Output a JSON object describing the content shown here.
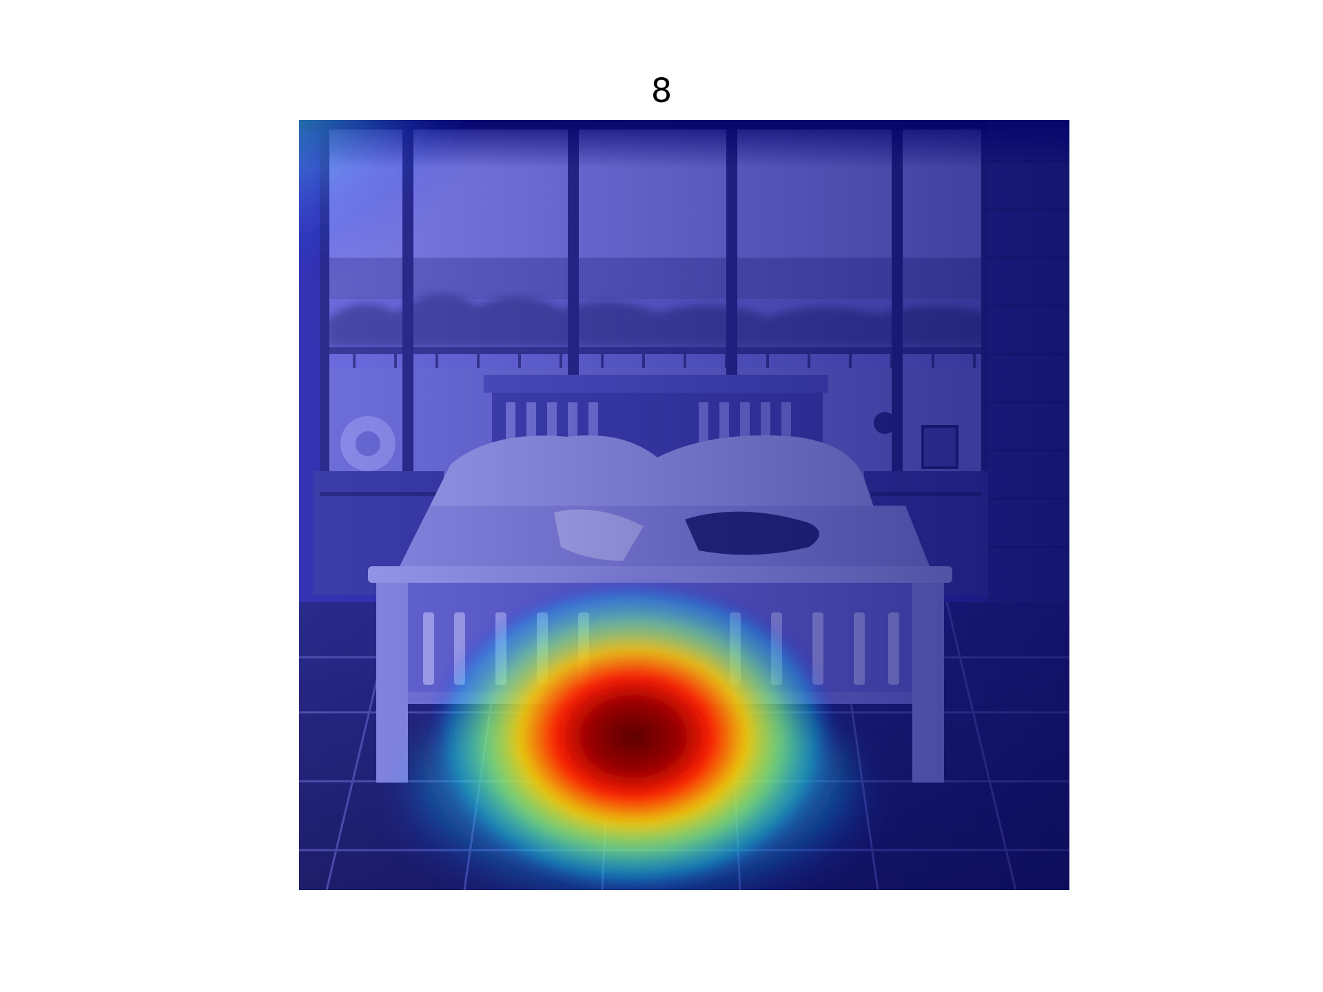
{
  "figure": {
    "title": "8"
  },
  "overlay": {
    "colormap": "jet",
    "colormap_stops": [
      "#00007f",
      "#0000ff",
      "#00ffff",
      "#ffff00",
      "#ff0000",
      "#7f0000"
    ],
    "base_tint": "#3a3ad8"
  },
  "scene_colors": {
    "wall": "#2f2f9e",
    "window_glass": "#7b7be6",
    "floor_tile": "#25257a",
    "bed_frame": "#8a8ae8",
    "bedding": "#a9a9f2"
  }
}
